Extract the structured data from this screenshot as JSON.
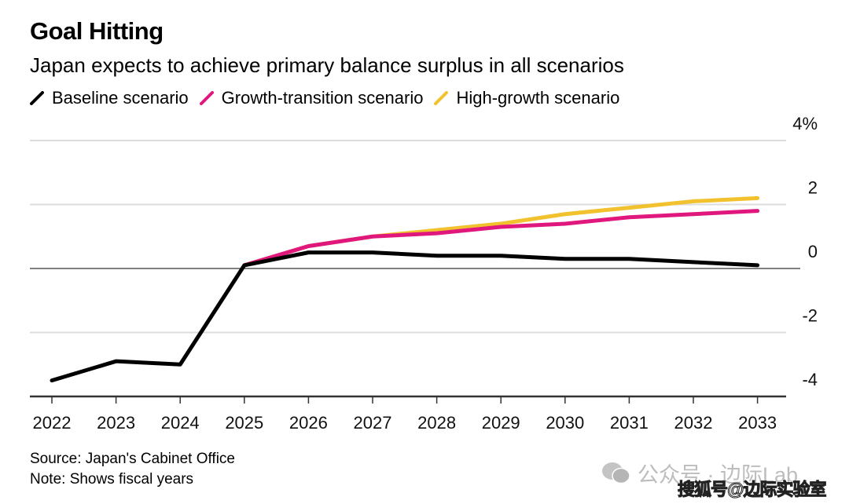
{
  "header": {
    "title": "Goal Hitting",
    "subtitle": "Japan expects to achieve primary balance surplus in all scenarios"
  },
  "legend": [
    {
      "label": "Baseline scenario",
      "color": "#000000"
    },
    {
      "label": "Growth-transition scenario",
      "color": "#e0187d"
    },
    {
      "label": "High-growth scenario",
      "color": "#f2c12e"
    }
  ],
  "footer": {
    "source": "Source: Japan's Cabinet Office",
    "note": "Note: Shows fiscal years"
  },
  "watermark": {
    "line1": "公众号 · 边际Lab",
    "line2": "搜狐号@边际实验室"
  },
  "chart_data": {
    "type": "line",
    "title": "Goal Hitting",
    "subtitle": "Japan expects to achieve primary balance surplus in all scenarios",
    "xlabel": "",
    "ylabel": "",
    "x": [
      "2022",
      "2023",
      "2024",
      "2025",
      "2026",
      "2027",
      "2028",
      "2029",
      "2030",
      "2031",
      "2032",
      "2033"
    ],
    "ylim": [
      -4,
      4
    ],
    "yticks": [
      4,
      2,
      0,
      -2,
      -4
    ],
    "ytick_labels": [
      "4%",
      "2",
      "0",
      "-2",
      "-4"
    ],
    "y_axis_side": "right",
    "grid": true,
    "legend_position": "top-left",
    "series": [
      {
        "name": "Baseline scenario",
        "color": "#000000",
        "values": [
          -3.5,
          -2.9,
          -3.0,
          0.1,
          0.5,
          0.5,
          0.4,
          0.4,
          0.3,
          0.3,
          0.2,
          0.1
        ]
      },
      {
        "name": "Growth-transition scenario",
        "color": "#e0187d",
        "values": [
          null,
          null,
          null,
          0.1,
          0.7,
          1.0,
          1.1,
          1.3,
          1.4,
          1.6,
          1.7,
          1.8
        ]
      },
      {
        "name": "High-growth scenario",
        "color": "#f2c12e",
        "values": [
          null,
          null,
          null,
          0.1,
          0.7,
          1.0,
          1.2,
          1.4,
          1.7,
          1.9,
          2.1,
          2.2
        ]
      }
    ]
  }
}
